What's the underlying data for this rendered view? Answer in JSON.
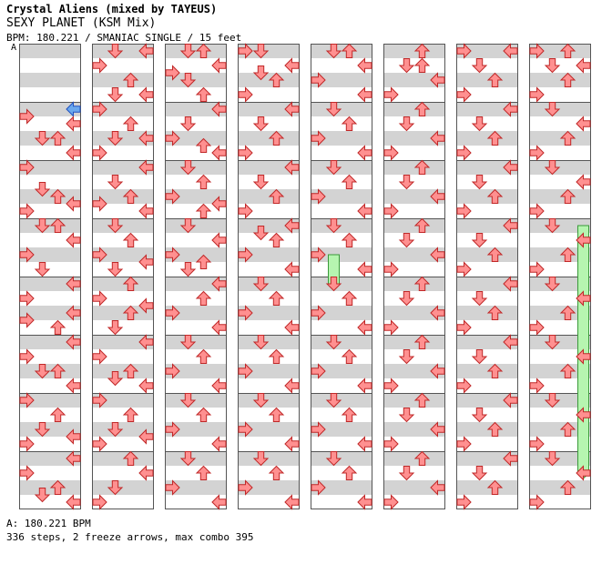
{
  "header": {
    "title": "Crystal Aliens (mixed by TAYEUS)",
    "song": "SEXY PLANET (KSM Mix)",
    "info": "BPM: 180.221 / SMANIAC SINGLE / 15 feet"
  },
  "bpm_marker": "A",
  "footer": {
    "bpm_legend": "A: 180.221 BPM",
    "stats": "336 steps, 2 freeze arrows, max combo 395"
  },
  "colors": {
    "red": "#ff9090",
    "blue": "#6aa8ee",
    "pink": "#ff9cff",
    "freeze": "#b6f5b0",
    "stripe": "#d3d3d3"
  },
  "notes": [
    [
      [
        4,
        3,
        "b"
      ],
      [
        4.5,
        0,
        "r"
      ],
      [
        5,
        3,
        "r"
      ],
      [
        6,
        1,
        "r"
      ],
      [
        6,
        2,
        "r"
      ],
      [
        7,
        3,
        "r"
      ],
      [
        8,
        0,
        "r"
      ],
      [
        9.5,
        1,
        "r"
      ],
      [
        10,
        2,
        "r"
      ],
      [
        10.5,
        3,
        "r"
      ],
      [
        11,
        0,
        "r"
      ],
      [
        12,
        1,
        "r"
      ],
      [
        12,
        2,
        "r"
      ],
      [
        13,
        3,
        "r"
      ],
      [
        14,
        0,
        "r"
      ],
      [
        15,
        1,
        "r"
      ],
      [
        16,
        3,
        "r"
      ],
      [
        17,
        0,
        "r"
      ],
      [
        18,
        3,
        "r"
      ],
      [
        18.5,
        0,
        "r"
      ],
      [
        19,
        2,
        "r"
      ],
      [
        20,
        3,
        "r"
      ],
      [
        21,
        0,
        "r"
      ],
      [
        22,
        1,
        "r"
      ],
      [
        22,
        2,
        "r"
      ],
      [
        23,
        3,
        "r"
      ],
      [
        24,
        0,
        "r"
      ],
      [
        25,
        2,
        "r"
      ],
      [
        26,
        1,
        "r"
      ],
      [
        26.5,
        3,
        "r"
      ],
      [
        27,
        0,
        "r"
      ],
      [
        28,
        3,
        "r"
      ],
      [
        29,
        0,
        "r"
      ],
      [
        30,
        2,
        "r"
      ],
      [
        30.5,
        1,
        "r"
      ],
      [
        31,
        3,
        "r"
      ]
    ],
    [
      [
        0,
        1,
        "r"
      ],
      [
        0,
        3,
        "r"
      ],
      [
        1,
        0,
        "r"
      ],
      [
        2,
        2,
        "r"
      ],
      [
        3,
        1,
        "r"
      ],
      [
        3,
        3,
        "r"
      ],
      [
        4,
        0,
        "r"
      ],
      [
        5,
        2,
        "r"
      ],
      [
        6,
        1,
        "r"
      ],
      [
        6,
        3,
        "r"
      ],
      [
        7,
        0,
        "r"
      ],
      [
        8,
        3,
        "r"
      ],
      [
        9,
        1,
        "r"
      ],
      [
        10,
        2,
        "r"
      ],
      [
        10.5,
        0,
        "r"
      ],
      [
        11,
        3,
        "r"
      ],
      [
        12,
        1,
        "r"
      ],
      [
        13,
        2,
        "r"
      ],
      [
        14,
        0,
        "r"
      ],
      [
        14.5,
        3,
        "r"
      ],
      [
        15,
        1,
        "r"
      ],
      [
        16,
        2,
        "r"
      ],
      [
        17,
        0,
        "r"
      ],
      [
        17.5,
        3,
        "r"
      ],
      [
        18,
        2,
        "r"
      ],
      [
        19,
        1,
        "r"
      ],
      [
        20,
        3,
        "r"
      ],
      [
        21,
        0,
        "r"
      ],
      [
        22,
        2,
        "r"
      ],
      [
        22.5,
        1,
        "r"
      ],
      [
        23,
        3,
        "r"
      ],
      [
        24,
        0,
        "r"
      ],
      [
        25,
        2,
        "r"
      ],
      [
        26,
        1,
        "r"
      ],
      [
        26.5,
        3,
        "r"
      ],
      [
        27,
        0,
        "r"
      ],
      [
        28,
        2,
        "r"
      ],
      [
        29,
        3,
        "r"
      ],
      [
        30,
        1,
        "r"
      ],
      [
        31,
        0,
        "r"
      ]
    ],
    [
      [
        0,
        1,
        "r"
      ],
      [
        0,
        2,
        "r"
      ],
      [
        1,
        3,
        "r"
      ],
      [
        1.5,
        0,
        "r"
      ],
      [
        2,
        1,
        "r"
      ],
      [
        3,
        2,
        "r"
      ],
      [
        4,
        3,
        "r"
      ],
      [
        5,
        1,
        "r"
      ],
      [
        6,
        0,
        "r"
      ],
      [
        6.5,
        2,
        "r"
      ],
      [
        7,
        3,
        "r"
      ],
      [
        8,
        1,
        "r"
      ],
      [
        9,
        2,
        "r"
      ],
      [
        10,
        0,
        "r"
      ],
      [
        10.5,
        3,
        "r"
      ],
      [
        11,
        2,
        "r"
      ],
      [
        12,
        1,
        "r"
      ],
      [
        13,
        3,
        "r"
      ],
      [
        14,
        0,
        "r"
      ],
      [
        14.5,
        2,
        "r"
      ],
      [
        15,
        1,
        "r"
      ],
      [
        16,
        3,
        "r"
      ],
      [
        17,
        2,
        "r"
      ],
      [
        18,
        0,
        "r"
      ],
      [
        19,
        3,
        "r"
      ],
      [
        20,
        1,
        "r"
      ],
      [
        21,
        2,
        "r"
      ],
      [
        22,
        0,
        "r"
      ],
      [
        23,
        3,
        "r"
      ],
      [
        24,
        1,
        "r"
      ],
      [
        25,
        2,
        "r"
      ],
      [
        26,
        0,
        "r"
      ],
      [
        27,
        3,
        "r"
      ],
      [
        28,
        1,
        "r"
      ],
      [
        29,
        2,
        "r"
      ],
      [
        30,
        0,
        "r"
      ],
      [
        31,
        3,
        "r"
      ]
    ],
    [
      [
        0,
        0,
        "r"
      ],
      [
        0,
        1,
        "r"
      ],
      [
        1,
        3,
        "r"
      ],
      [
        1.5,
        1,
        "r"
      ],
      [
        2,
        2,
        "r"
      ],
      [
        3,
        0,
        "r"
      ],
      [
        4,
        3,
        "r"
      ],
      [
        5,
        1,
        "r"
      ],
      [
        6,
        2,
        "r"
      ],
      [
        7,
        0,
        "r"
      ],
      [
        8,
        3,
        "r"
      ],
      [
        9,
        1,
        "r"
      ],
      [
        10,
        2,
        "r"
      ],
      [
        11,
        0,
        "r"
      ],
      [
        12,
        3,
        "r"
      ],
      [
        12.5,
        1,
        "r"
      ],
      [
        13,
        2,
        "r"
      ],
      [
        14,
        0,
        "r"
      ],
      [
        15,
        3,
        "r"
      ],
      [
        16,
        1,
        "r"
      ],
      [
        17,
        2,
        "r"
      ],
      [
        18,
        0,
        "r"
      ],
      [
        19,
        3,
        "r"
      ],
      [
        20,
        1,
        "r"
      ],
      [
        21,
        2,
        "r"
      ],
      [
        22,
        0,
        "r"
      ],
      [
        23,
        3,
        "r"
      ],
      [
        24,
        1,
        "r"
      ],
      [
        25,
        2,
        "r"
      ],
      [
        26,
        0,
        "r"
      ],
      [
        27,
        3,
        "r"
      ],
      [
        28,
        1,
        "r"
      ],
      [
        29,
        2,
        "r"
      ],
      [
        30,
        0,
        "r"
      ],
      [
        31,
        3,
        "r"
      ]
    ],
    [
      [
        0,
        1,
        "r"
      ],
      [
        0,
        2,
        "r"
      ],
      [
        1,
        3,
        "r"
      ],
      [
        2,
        0,
        "r"
      ],
      [
        3,
        3,
        "r"
      ],
      [
        4,
        1,
        "r"
      ],
      [
        5,
        2,
        "r"
      ],
      [
        6,
        0,
        "r"
      ],
      [
        7,
        3,
        "r"
      ],
      [
        8,
        1,
        "r"
      ],
      [
        9,
        2,
        "r"
      ],
      [
        10,
        0,
        "r"
      ],
      [
        11,
        3,
        "r"
      ],
      [
        12,
        1,
        "r"
      ],
      [
        13,
        2,
        "r"
      ],
      [
        14,
        0,
        "r"
      ],
      [
        15,
        3,
        "r"
      ],
      [
        16,
        1,
        "r"
      ],
      [
        17,
        2,
        "r"
      ],
      [
        18,
        0,
        "r"
      ],
      [
        19,
        3,
        "r"
      ],
      [
        20,
        1,
        "r"
      ],
      [
        21,
        2,
        "r"
      ],
      [
        22,
        0,
        "r"
      ],
      [
        23,
        3,
        "r"
      ],
      [
        24,
        1,
        "r"
      ],
      [
        25,
        2,
        "r"
      ],
      [
        26,
        0,
        "r"
      ],
      [
        27,
        3,
        "r"
      ],
      [
        28,
        1,
        "r"
      ],
      [
        29,
        2,
        "r"
      ],
      [
        30,
        0,
        "r"
      ],
      [
        31,
        3,
        "r"
      ]
    ],
    [
      [
        0,
        2,
        "r"
      ],
      [
        1,
        1,
        "r"
      ],
      [
        1,
        2,
        "r"
      ],
      [
        2,
        3,
        "r"
      ],
      [
        3,
        0,
        "r"
      ],
      [
        4,
        2,
        "r"
      ],
      [
        5,
        1,
        "r"
      ],
      [
        6,
        3,
        "r"
      ],
      [
        7,
        0,
        "r"
      ],
      [
        8,
        2,
        "r"
      ],
      [
        9,
        1,
        "r"
      ],
      [
        10,
        3,
        "r"
      ],
      [
        11,
        0,
        "r"
      ],
      [
        12,
        2,
        "r"
      ],
      [
        13,
        1,
        "r"
      ],
      [
        14,
        3,
        "r"
      ],
      [
        15,
        0,
        "r"
      ],
      [
        16,
        2,
        "r"
      ],
      [
        17,
        1,
        "r"
      ],
      [
        18,
        3,
        "r"
      ],
      [
        19,
        0,
        "r"
      ],
      [
        20,
        2,
        "r"
      ],
      [
        21,
        1,
        "r"
      ],
      [
        22,
        3,
        "r"
      ],
      [
        23,
        0,
        "r"
      ],
      [
        24,
        2,
        "r"
      ],
      [
        25,
        1,
        "r"
      ],
      [
        26,
        3,
        "r"
      ],
      [
        27,
        0,
        "r"
      ],
      [
        28,
        2,
        "r"
      ],
      [
        29,
        1,
        "r"
      ],
      [
        30,
        3,
        "r"
      ],
      [
        31,
        0,
        "r"
      ]
    ],
    [
      [
        0,
        0,
        "r"
      ],
      [
        0,
        3,
        "r"
      ],
      [
        1,
        1,
        "r"
      ],
      [
        2,
        2,
        "r"
      ],
      [
        3,
        0,
        "r"
      ],
      [
        4,
        3,
        "r"
      ],
      [
        5,
        1,
        "r"
      ],
      [
        6,
        2,
        "r"
      ],
      [
        7,
        0,
        "r"
      ],
      [
        8,
        3,
        "r"
      ],
      [
        9,
        1,
        "r"
      ],
      [
        10,
        2,
        "r"
      ],
      [
        11,
        0,
        "r"
      ],
      [
        12,
        3,
        "r"
      ],
      [
        13,
        1,
        "r"
      ],
      [
        14,
        2,
        "r"
      ],
      [
        15,
        0,
        "r"
      ],
      [
        16,
        3,
        "r"
      ],
      [
        17,
        1,
        "r"
      ],
      [
        18,
        2,
        "r"
      ],
      [
        19,
        0,
        "r"
      ],
      [
        20,
        3,
        "r"
      ],
      [
        21,
        1,
        "r"
      ],
      [
        22,
        2,
        "r"
      ],
      [
        23,
        0,
        "r"
      ],
      [
        24,
        3,
        "r"
      ],
      [
        25,
        1,
        "r"
      ],
      [
        26,
        2,
        "r"
      ],
      [
        27,
        0,
        "r"
      ],
      [
        28,
        3,
        "r"
      ],
      [
        29,
        1,
        "r"
      ],
      [
        30,
        2,
        "r"
      ],
      [
        31,
        0,
        "r"
      ]
    ],
    [
      [
        0,
        0,
        "r"
      ],
      [
        0,
        2,
        "r"
      ],
      [
        1,
        1,
        "r"
      ],
      [
        1,
        3,
        "r"
      ],
      [
        2,
        2,
        "r"
      ],
      [
        3,
        0,
        "r"
      ],
      [
        4,
        1,
        "r"
      ],
      [
        5,
        3,
        "r"
      ],
      [
        6,
        2,
        "r"
      ],
      [
        7,
        0,
        "r"
      ],
      [
        8,
        1,
        "r"
      ],
      [
        9,
        3,
        "r"
      ],
      [
        10,
        2,
        "r"
      ],
      [
        11,
        0,
        "r"
      ],
      [
        12,
        1,
        "r"
      ],
      [
        13,
        3,
        "r"
      ],
      [
        14,
        2,
        "r"
      ],
      [
        15,
        0,
        "r"
      ],
      [
        16,
        1,
        "r"
      ],
      [
        17,
        3,
        "r"
      ],
      [
        18,
        2,
        "r"
      ],
      [
        19,
        0,
        "r"
      ],
      [
        20,
        1,
        "r"
      ],
      [
        21,
        3,
        "r"
      ],
      [
        22,
        2,
        "r"
      ],
      [
        23,
        0,
        "r"
      ],
      [
        24,
        1,
        "r"
      ],
      [
        25,
        3,
        "r"
      ],
      [
        26,
        2,
        "r"
      ],
      [
        27,
        0,
        "r"
      ],
      [
        28,
        1,
        "r"
      ],
      [
        29,
        3,
        "r"
      ],
      [
        30,
        2,
        "r"
      ],
      [
        31,
        0,
        "r"
      ]
    ]
  ],
  "freezes": [
    [
      4,
      1,
      14,
      16
    ],
    [
      7,
      3,
      12,
      29
    ]
  ]
}
